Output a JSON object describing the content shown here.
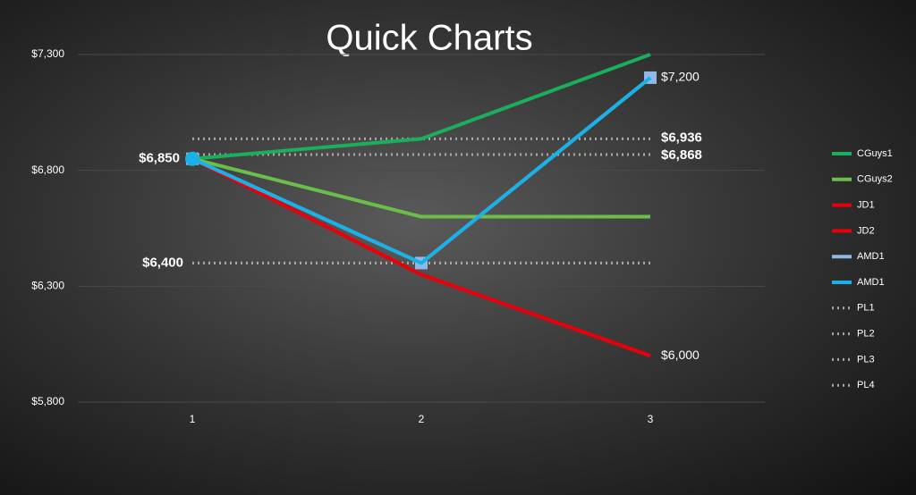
{
  "chart_data": {
    "type": "line",
    "title": "Quick Charts",
    "categories": [
      "1",
      "2",
      "3"
    ],
    "ylim": [
      5800,
      7300
    ],
    "yticks": [
      {
        "value": 5800,
        "label": "$5,800"
      },
      {
        "value": 6300,
        "label": "$6,300"
      },
      {
        "value": 6800,
        "label": "$6,800"
      },
      {
        "value": 7300,
        "label": "$7,300"
      }
    ],
    "grid": true,
    "legend": "right",
    "series": [
      {
        "name": "PL1",
        "color": "#a6a6a6",
        "dashed": true,
        "values": [
          6936,
          6936,
          6936
        ],
        "value_labels": [
          null,
          null,
          "$6,936"
        ]
      },
      {
        "name": "PL2",
        "color": "#a6a6a6",
        "dashed": true,
        "values": [
          6868,
          6868,
          6868
        ],
        "value_labels": [
          null,
          null,
          "$6,868"
        ]
      },
      {
        "name": "PL3",
        "color": "#a6a6a6",
        "dashed": true,
        "values": [
          6400,
          6400,
          6400
        ],
        "value_labels": [
          "$6,400",
          null,
          null
        ]
      },
      {
        "name": "PL4",
        "color": "#a6a6a6",
        "dashed": true,
        "values": [
          6400,
          6400,
          6400
        ]
      },
      {
        "name": "CGuys1",
        "color": "#1aaf5d",
        "values": [
          6850,
          6936,
          7300
        ]
      },
      {
        "name": "CGuys2",
        "color": "#6abf4b",
        "values": [
          6850,
          6600,
          6600
        ]
      },
      {
        "name": "JD1",
        "color": "#e8000b",
        "values": [
          6850,
          6350,
          6000
        ],
        "value_labels": [
          null,
          null,
          "$6,000"
        ]
      },
      {
        "name": "JD2",
        "color": "#e8000b",
        "values": [
          6850,
          6350,
          6000
        ]
      },
      {
        "name": "AMD1",
        "color": "#8fb8e6",
        "marker": "square",
        "values": [
          6850,
          6400,
          7200
        ],
        "value_labels": [
          null,
          null,
          "$7,200"
        ]
      },
      {
        "name": "AMD1",
        "color": "#1ab0e8",
        "marker": "circle",
        "marker_index": [
          0
        ],
        "values": [
          6850,
          6400,
          7200
        ],
        "value_labels": [
          "$6,850",
          null,
          null
        ]
      }
    ],
    "legend_order": [
      4,
      5,
      6,
      7,
      8,
      9,
      0,
      1,
      2,
      3
    ]
  }
}
